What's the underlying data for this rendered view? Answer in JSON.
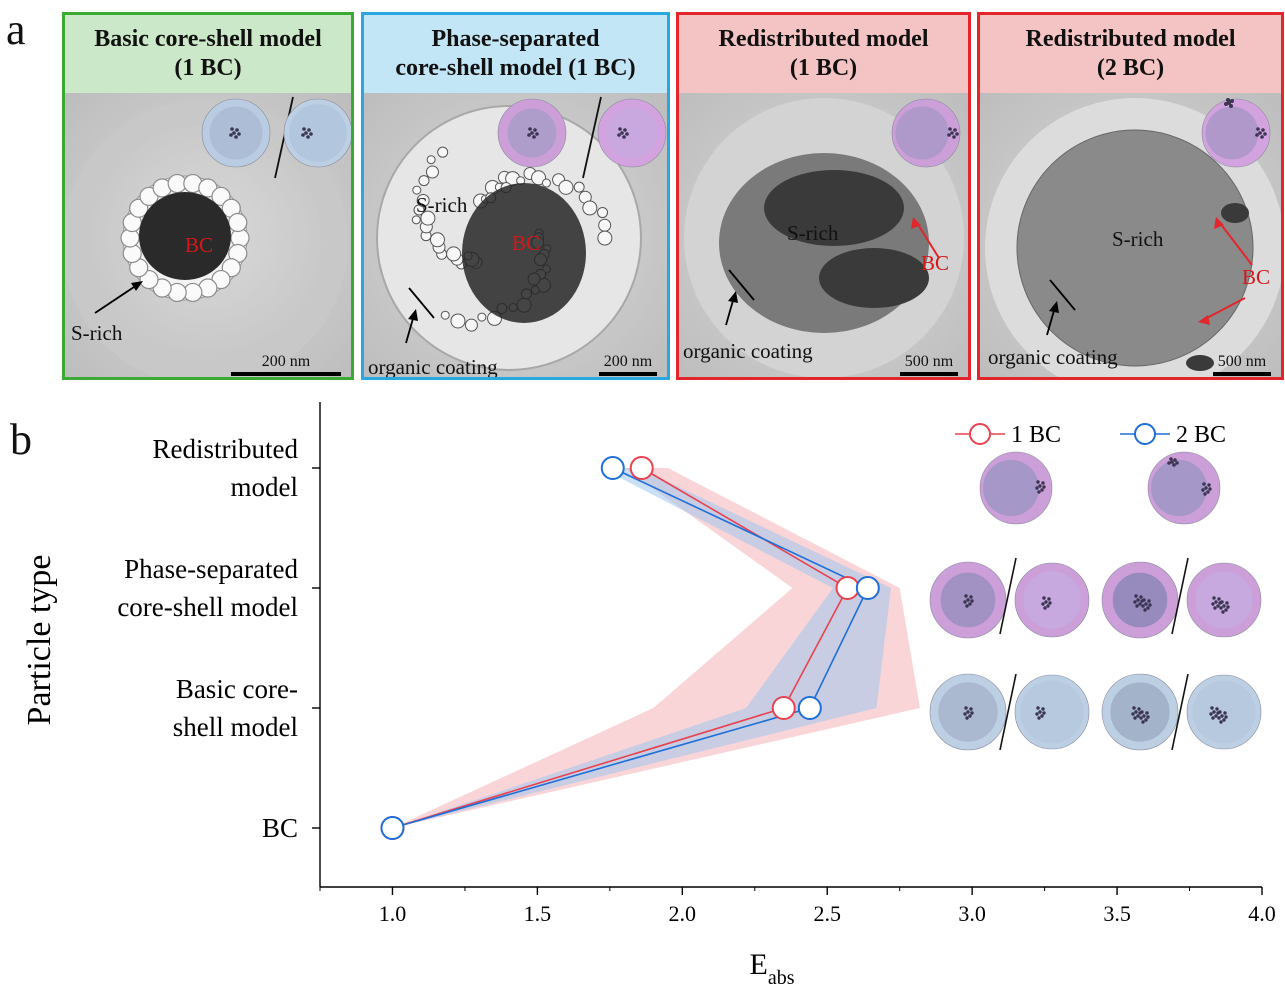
{
  "panel_a": {
    "letter": "a",
    "panels": [
      {
        "title_line1": "Basic core-shell model",
        "title_line2": "(1 BC)",
        "border": "#3aaa35",
        "header_bg": "#cbe8c8",
        "labels": {
          "bc": "BC",
          "s_rich": "S-rich"
        },
        "scale": "200 nm"
      },
      {
        "title_line1": "Phase-separated",
        "title_line2": "core-shell model (1 BC)",
        "border": "#29a8e0",
        "header_bg": "#c2e6f6",
        "labels": {
          "bc": "BC",
          "s_rich": "S-rich",
          "coating": "organic coating"
        },
        "scale": "200 nm"
      },
      {
        "title_line1": "Redistributed model",
        "title_line2": "(1 BC)",
        "border": "#e2262c",
        "header_bg": "#f4c3c3",
        "labels": {
          "bc": "BC",
          "s_rich": "S-rich",
          "coating": "organic coating"
        },
        "scale": "500 nm"
      },
      {
        "title_line1": "Redistributed model",
        "title_line2": "(2 BC)",
        "border": "#e2262c",
        "header_bg": "#f4c3c3",
        "labels": {
          "bc": "BC",
          "s_rich": "S-rich",
          "coating": "organic coating"
        },
        "scale": "500 nm"
      }
    ]
  },
  "panel_b": {
    "letter": "b"
  },
  "colors": {
    "series_1bc": "#e8424f",
    "series_2bc": "#1f6fd8",
    "band_1bc": "#f6b3b8",
    "band_2bc": "#9fc6ee",
    "purple_shell": "#cc9fd9",
    "blue_shell": "#bccfe3"
  },
  "chart_data": {
    "type": "line",
    "orientation": "horizontal",
    "xlabel": "E",
    "xlabel_sub": "abs",
    "ylabel": "Particle type",
    "xlim": [
      0.75,
      4.0
    ],
    "xticks": [
      1.0,
      1.5,
      2.0,
      2.5,
      3.0,
      3.5,
      4.0
    ],
    "xtick_labels": [
      "1.0",
      "1.5",
      "2.0",
      "2.5",
      "3.0",
      "3.5",
      "4.0"
    ],
    "categories": [
      {
        "line1": "BC",
        "line2": ""
      },
      {
        "line1": "Basic core-",
        "line2": "shell model"
      },
      {
        "line1": "Phase-separated",
        "line2": "core-shell model"
      },
      {
        "line1": "Redistributed",
        "line2": "model"
      }
    ],
    "series": [
      {
        "name": "1 BC",
        "values": [
          1.0,
          2.35,
          2.57,
          1.86
        ],
        "band_low": [
          1.0,
          1.9,
          2.38,
          1.8
        ],
        "band_high": [
          1.0,
          2.82,
          2.75,
          1.95
        ]
      },
      {
        "name": "2 BC",
        "values": [
          1.0,
          2.44,
          2.64,
          1.76
        ],
        "band_low": [
          1.0,
          2.22,
          2.52,
          1.72
        ],
        "band_high": [
          1.0,
          2.67,
          2.72,
          1.85
        ]
      }
    ],
    "legend": "top-right",
    "grid": false
  }
}
